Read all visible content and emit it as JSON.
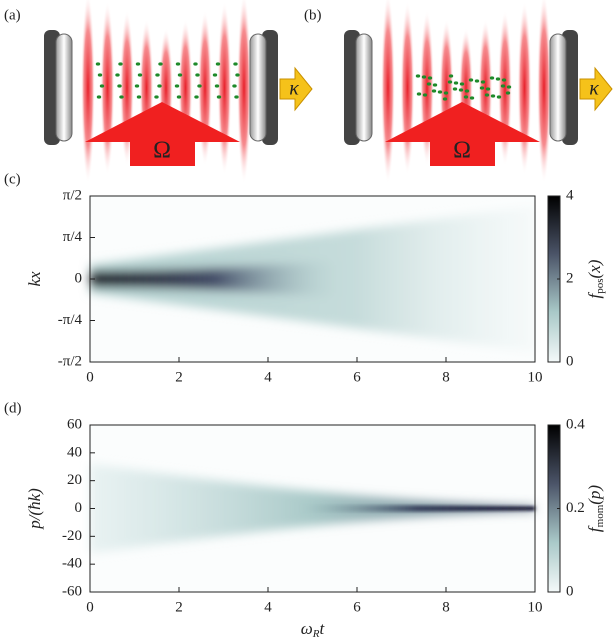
{
  "panels": {
    "a": {
      "label": "(a)",
      "pump": "Ω",
      "decay": "κ"
    },
    "b": {
      "label": "(b)",
      "pump": "Ω",
      "decay": "κ"
    }
  },
  "chart_data": [
    {
      "type": "heatmap",
      "label": "(c)",
      "ylabel": "kx",
      "xlim": [
        0,
        10
      ],
      "xticks": [
        0,
        2,
        4,
        6,
        8,
        10
      ],
      "ylim": [
        -1.5708,
        1.5708
      ],
      "yticks": [
        {
          "value": -1.5708,
          "label": "-π/2"
        },
        {
          "value": -0.7854,
          "label": "-π/4"
        },
        0,
        {
          "value": 0.7854,
          "label": "π/4"
        },
        {
          "value": 1.5708,
          "label": "π/2"
        }
      ],
      "colorbar": {
        "symbol": "f",
        "subscript": "pos",
        "argument": "(x)",
        "lim": [
          0,
          4
        ],
        "ticks": [
          0,
          2,
          4
        ]
      }
    },
    {
      "type": "heatmap",
      "label": "(d)",
      "ylabel": "p/(ħk)",
      "xlabel": {
        "symbol": "ω",
        "subscript": "R",
        "suffix": "t"
      },
      "xlim": [
        0,
        10
      ],
      "xticks": [
        0,
        2,
        4,
        6,
        8,
        10
      ],
      "ylim": [
        -60,
        60
      ],
      "yticks": [
        -60,
        -40,
        -20,
        0,
        20,
        40,
        60
      ],
      "colorbar": {
        "symbol": "f",
        "subscript": "mom",
        "argument": "(p)",
        "lim": [
          0,
          0.4
        ],
        "ticks": [
          0,
          0.2,
          0.4
        ]
      }
    }
  ]
}
